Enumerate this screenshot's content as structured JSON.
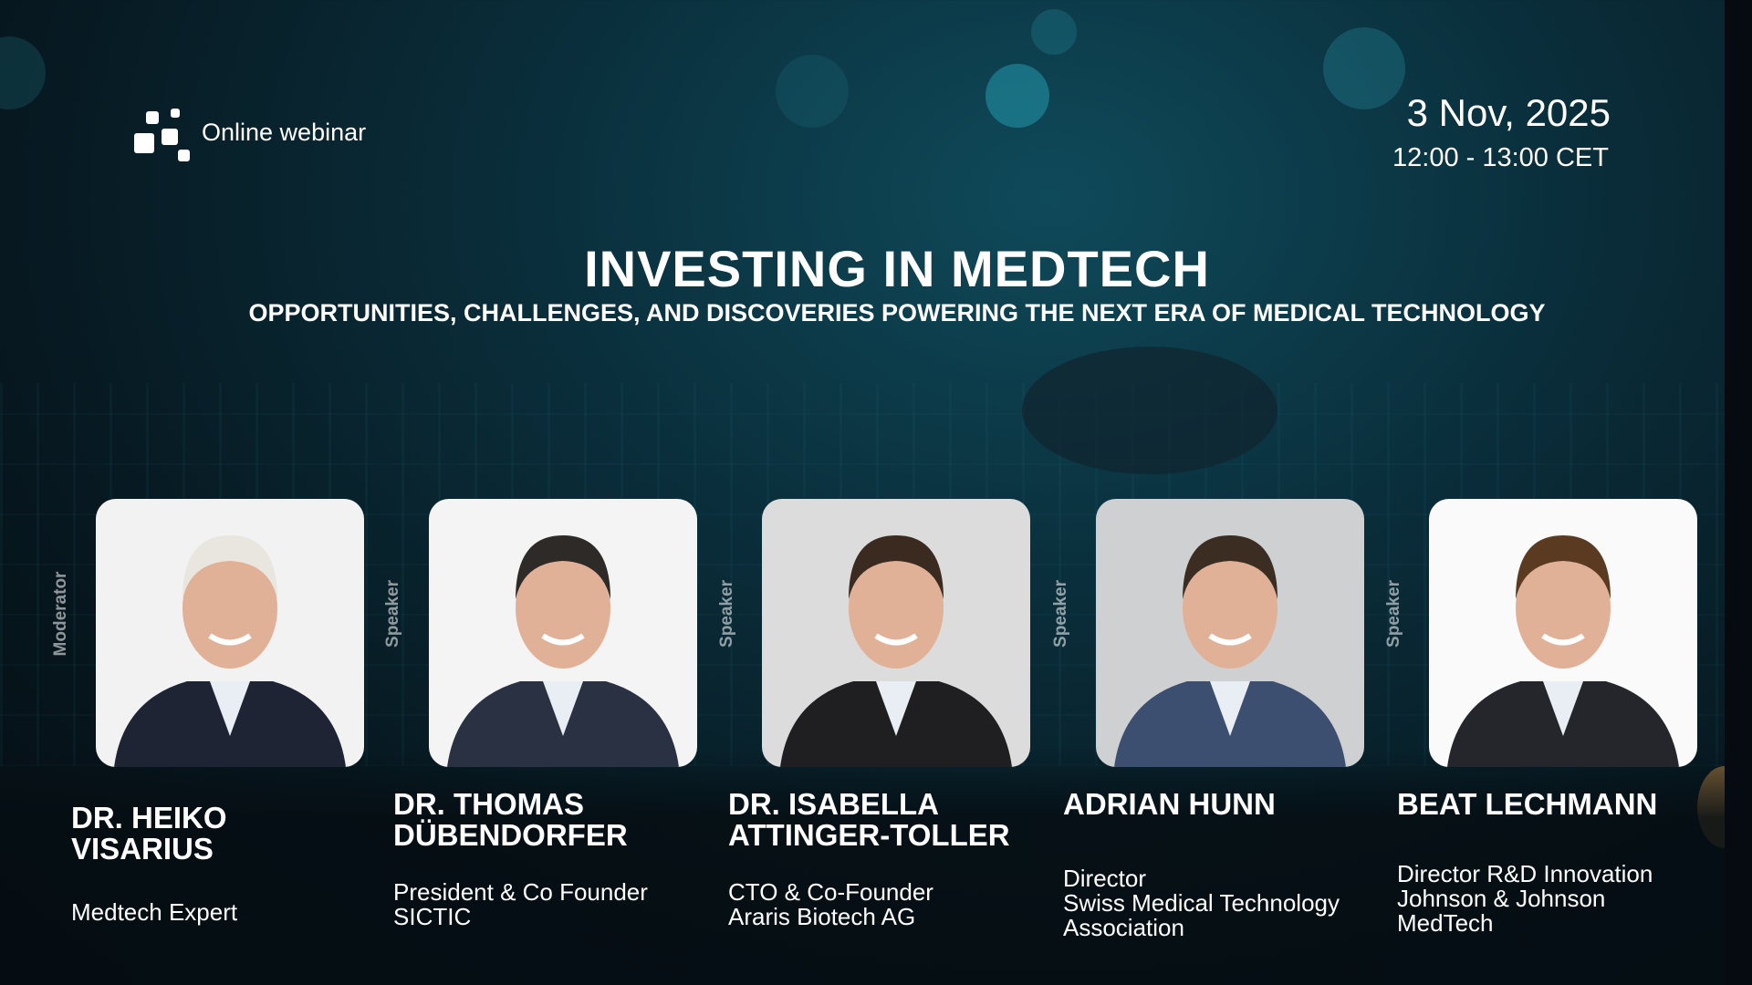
{
  "header": {
    "logo_icon": "squares-logo-icon",
    "label": "Online webinar",
    "date": "3 Nov, 2025",
    "time": "12:00 - 13:00 CET"
  },
  "title": "INVESTING IN MEDTECH",
  "subtitle": "OPPORTUNITIES, CHALLENGES, AND DISCOVERIES POWERING THE NEXT ERA OF MEDICAL TECHNOLOGY",
  "speakers": [
    {
      "role": "Moderator",
      "name": "DR. HEIKO\nVISARIUS",
      "description": "Medtech Expert"
    },
    {
      "role": "Speaker",
      "name": "DR. THOMAS\nDÜBENDORFER",
      "description": "President & Co Founder\nSICTIC"
    },
    {
      "role": "Speaker",
      "name": "DR. ISABELLA\nATTINGER-TOLLER",
      "description": "CTO & Co-Founder\nAraris Biotech AG"
    },
    {
      "role": "Speaker",
      "name": "ADRIAN HUNN",
      "description": "Director\nSwiss Medical Technology\nAssociation"
    },
    {
      "role": "Speaker",
      "name": "BEAT LECHMANN",
      "description": "Director R&D Innovation\nJohnson & Johnson\nMedTech"
    }
  ],
  "colors": {
    "background": "#0a2e3b",
    "text": "#ffffff"
  }
}
